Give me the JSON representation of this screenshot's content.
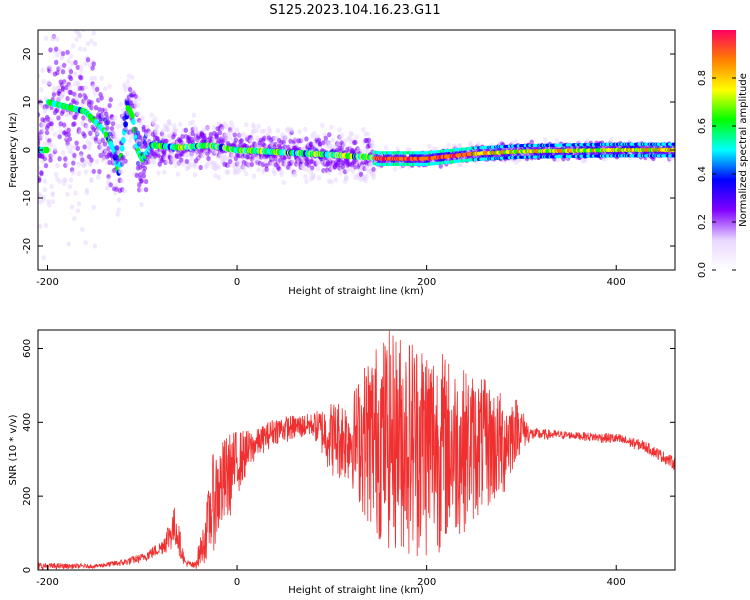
{
  "title": "S125.2023.104.16.23.G11",
  "colors": {
    "axis": "#000000",
    "snr_line": "#f03030",
    "background": "#ffffff"
  },
  "chart_data": [
    {
      "type": "heatmap",
      "name": "spectrogram",
      "xlabel": "Height of straight line (km)",
      "ylabel": "Frequency (Hz)",
      "xlim": [
        -210,
        462
      ],
      "ylim": [
        -25,
        25
      ],
      "xticks": [
        -200,
        0,
        200,
        400
      ],
      "yticks": [
        -20,
        -10,
        0,
        10,
        20
      ],
      "grid": false,
      "colorbar": {
        "label": "Normalized spectral amplitude",
        "range": [
          0,
          1
        ],
        "ticks": [
          0.0,
          0.2,
          0.4,
          0.6,
          0.8
        ],
        "colormap": [
          "#ffffff",
          "#e8d6ff",
          "#8000ff",
          "#0000ff",
          "#00ffff",
          "#00ff00",
          "#ffff00",
          "#ff8000",
          "#ff0060"
        ]
      },
      "ridge": [
        {
          "x": -200,
          "y": 10
        },
        {
          "x": -180,
          "y": 9
        },
        {
          "x": -160,
          "y": 8
        },
        {
          "x": -150,
          "y": 6
        },
        {
          "x": -140,
          "y": 4
        },
        {
          "x": -130,
          "y": 0
        },
        {
          "x": -125,
          "y": -5
        },
        {
          "x": -115,
          "y": 9
        },
        {
          "x": -110,
          "y": 7
        },
        {
          "x": -105,
          "y": 0
        },
        {
          "x": -100,
          "y": -2
        },
        {
          "x": -90,
          "y": 1
        },
        {
          "x": -60,
          "y": 0.5
        },
        {
          "x": -30,
          "y": 1
        },
        {
          "x": 0,
          "y": 0
        },
        {
          "x": 50,
          "y": -0.5
        },
        {
          "x": 100,
          "y": -1
        },
        {
          "x": 140,
          "y": -1.5
        },
        {
          "x": 150,
          "y": -1.8
        },
        {
          "x": 200,
          "y": -1.8
        },
        {
          "x": 250,
          "y": -0.8
        },
        {
          "x": 300,
          "y": -0.3
        },
        {
          "x": 400,
          "y": 0
        },
        {
          "x": 462,
          "y": 0
        }
      ]
    },
    {
      "type": "line",
      "name": "snr",
      "xlabel": "Height of straight line (km)",
      "ylabel": "SNR (10 * v/v)",
      "xlim": [
        -210,
        462
      ],
      "ylim": [
        0,
        650
      ],
      "xticks": [
        -200,
        0,
        200,
        400
      ],
      "yticks": [
        0,
        200,
        400,
        600
      ],
      "grid": false,
      "envelope": [
        {
          "x": -210,
          "lo": 0,
          "hi": 20
        },
        {
          "x": -150,
          "lo": 5,
          "hi": 15
        },
        {
          "x": -120,
          "lo": 10,
          "hi": 30
        },
        {
          "x": -100,
          "lo": 20,
          "hi": 45
        },
        {
          "x": -80,
          "lo": 40,
          "hi": 80
        },
        {
          "x": -65,
          "lo": 55,
          "hi": 180
        },
        {
          "x": -55,
          "lo": 10,
          "hi": 30
        },
        {
          "x": -45,
          "lo": 0,
          "hi": 20
        },
        {
          "x": -35,
          "lo": 15,
          "hi": 130
        },
        {
          "x": -25,
          "lo": 50,
          "hi": 320
        },
        {
          "x": -10,
          "lo": 120,
          "hi": 370
        },
        {
          "x": 0,
          "lo": 200,
          "hi": 380
        },
        {
          "x": 20,
          "lo": 300,
          "hi": 380
        },
        {
          "x": 40,
          "lo": 340,
          "hi": 415
        },
        {
          "x": 80,
          "lo": 360,
          "hi": 425
        },
        {
          "x": 100,
          "lo": 250,
          "hi": 460
        },
        {
          "x": 120,
          "lo": 230,
          "hi": 470
        },
        {
          "x": 140,
          "lo": 100,
          "hi": 600
        },
        {
          "x": 160,
          "lo": 50,
          "hi": 650
        },
        {
          "x": 200,
          "lo": 20,
          "hi": 640
        },
        {
          "x": 230,
          "lo": 80,
          "hi": 560
        },
        {
          "x": 260,
          "lo": 150,
          "hi": 520
        },
        {
          "x": 280,
          "lo": 180,
          "hi": 480
        },
        {
          "x": 295,
          "lo": 300,
          "hi": 470
        },
        {
          "x": 310,
          "lo": 350,
          "hi": 385
        },
        {
          "x": 350,
          "lo": 355,
          "hi": 375
        },
        {
          "x": 400,
          "lo": 340,
          "hi": 370
        },
        {
          "x": 430,
          "lo": 320,
          "hi": 350
        },
        {
          "x": 462,
          "lo": 270,
          "hi": 305
        }
      ]
    }
  ]
}
